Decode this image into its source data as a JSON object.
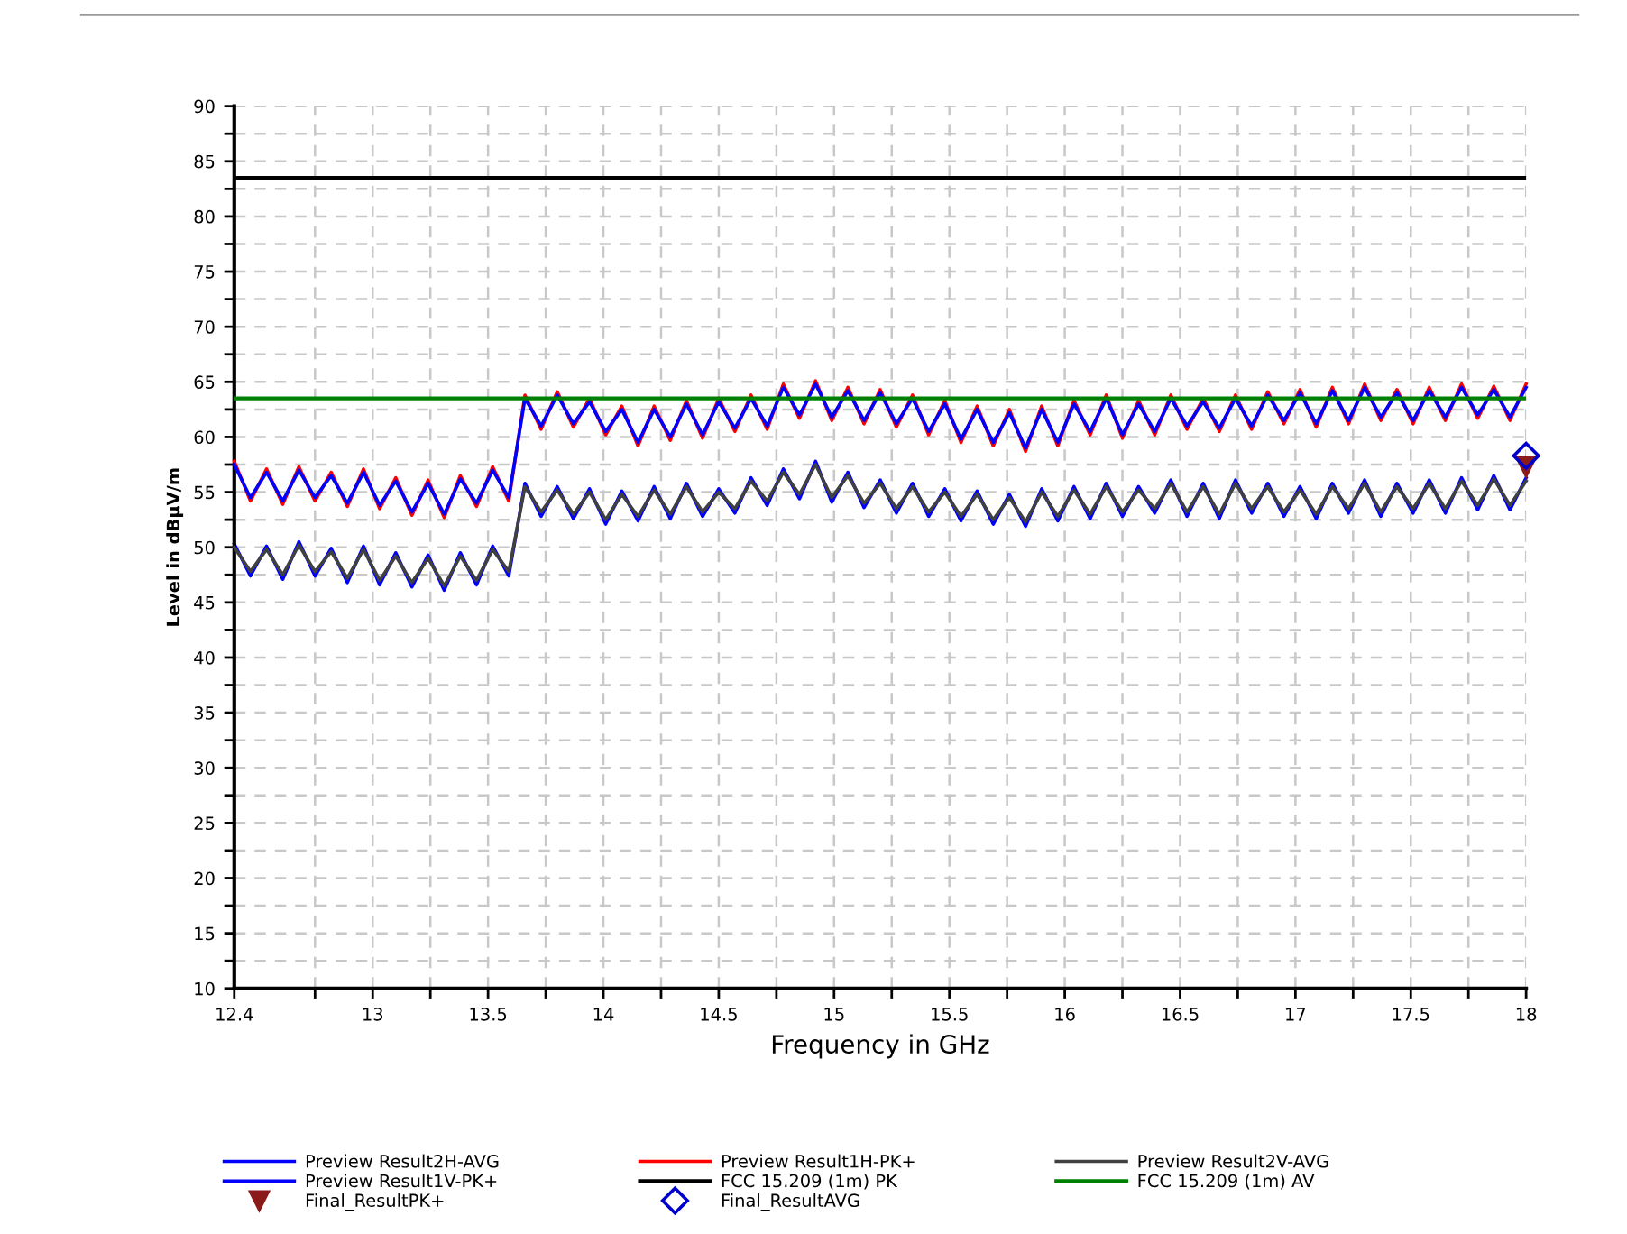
{
  "chart_data": {
    "type": "line",
    "xlabel": "Frequency in GHz",
    "ylabel": "Level in dBµV/m",
    "x": [
      12.4,
      12.47,
      12.54,
      12.61,
      12.68,
      12.75,
      12.82,
      12.89,
      12.96,
      13.03,
      13.1,
      13.17,
      13.24,
      13.31,
      13.38,
      13.45,
      13.52,
      13.59,
      13.66,
      13.73,
      13.8,
      13.87,
      13.94,
      14.01,
      14.08,
      14.15,
      14.22,
      14.29,
      14.36,
      14.43,
      14.5,
      14.57,
      14.64,
      14.71,
      14.78,
      14.85,
      14.92,
      14.99,
      15.06,
      15.13,
      15.2,
      15.27,
      15.34,
      15.41,
      15.48,
      15.55,
      15.62,
      15.69,
      15.76,
      15.83,
      15.9,
      15.97,
      16.04,
      16.11,
      16.18,
      16.25,
      16.32,
      16.39,
      16.46,
      16.53,
      16.6,
      16.67,
      16.74,
      16.81,
      16.88,
      16.95,
      17.02,
      17.09,
      17.16,
      17.23,
      17.3,
      17.37,
      17.44,
      17.51,
      17.58,
      17.65,
      17.72,
      17.79,
      17.86,
      17.93,
      18.0
    ],
    "series": [
      {
        "name": "Preview Result2H-AVG",
        "color": "#0000ff",
        "values": [
          50.3,
          47.4,
          50.1,
          47.1,
          50.5,
          47.4,
          49.9,
          46.8,
          50.1,
          46.6,
          49.5,
          46.4,
          49.3,
          46.1,
          49.5,
          46.6,
          50.1,
          47.4,
          55.8,
          52.8,
          55.5,
          52.6,
          55.3,
          52.1,
          55.1,
          52.4,
          55.5,
          52.6,
          55.8,
          52.8,
          55.3,
          53.1,
          56.3,
          53.8,
          57.1,
          54.4,
          57.8,
          54.1,
          56.8,
          53.6,
          56.1,
          53.1,
          55.8,
          52.8,
          55.3,
          52.4,
          55.1,
          52.1,
          54.8,
          51.9,
          55.3,
          52.4,
          55.5,
          52.6,
          55.8,
          52.8,
          55.5,
          53.1,
          56.1,
          52.8,
          55.8,
          52.6,
          56.1,
          53.1,
          55.8,
          52.8,
          55.5,
          52.6,
          55.8,
          53.1,
          56.1,
          52.8,
          55.8,
          53.1,
          56.1,
          53.1,
          56.3,
          53.4,
          56.5,
          53.4,
          56.3
        ]
      },
      {
        "name": "Preview Result1H-PK+",
        "color": "#ff0000",
        "values": [
          57.8,
          54.2,
          57.1,
          53.9,
          57.3,
          54.2,
          56.8,
          53.7,
          57.1,
          53.5,
          56.3,
          52.9,
          56.1,
          52.7,
          56.5,
          53.7,
          57.3,
          54.2,
          63.8,
          60.7,
          64.1,
          60.9,
          63.5,
          60.2,
          62.8,
          59.2,
          62.8,
          59.7,
          63.3,
          59.9,
          63.5,
          60.5,
          63.8,
          60.7,
          64.8,
          61.7,
          65.1,
          61.5,
          64.5,
          61.2,
          64.3,
          60.9,
          63.8,
          60.2,
          63.3,
          59.5,
          62.8,
          59.2,
          62.5,
          58.7,
          62.8,
          59.2,
          63.3,
          60.2,
          63.8,
          59.9,
          63.3,
          60.2,
          63.8,
          60.7,
          63.5,
          60.5,
          63.8,
          60.7,
          64.1,
          61.2,
          64.3,
          60.9,
          64.5,
          61.2,
          64.8,
          61.5,
          64.3,
          61.2,
          64.5,
          61.5,
          64.8,
          61.7,
          64.6,
          61.5,
          64.8
        ]
      },
      {
        "name": "Preview Result2V-AVG",
        "color": "#404040",
        "values": [
          50,
          47.8,
          49.8,
          47.5,
          50.2,
          47.8,
          49.6,
          47.2,
          49.8,
          47,
          49.2,
          46.8,
          49,
          46.5,
          49.2,
          47,
          49.8,
          47.8,
          55.5,
          53.2,
          55.2,
          53,
          55,
          52.5,
          54.8,
          52.8,
          55.2,
          53,
          55.5,
          53.2,
          55,
          53.5,
          56,
          54.2,
          56.8,
          54.8,
          57.5,
          54.5,
          56.5,
          54,
          55.8,
          53.5,
          55.5,
          53.2,
          55,
          52.8,
          54.8,
          52.5,
          54.5,
          52.3,
          55,
          52.8,
          55.2,
          53,
          55.5,
          53.2,
          55.2,
          53.5,
          55.8,
          53.2,
          55.5,
          53,
          55.8,
          53.5,
          55.5,
          53.2,
          55.2,
          53,
          55.5,
          53.5,
          55.8,
          53.2,
          55.5,
          53.5,
          55.8,
          53.5,
          56,
          53.8,
          56.2,
          53.8,
          56
        ]
      },
      {
        "name": "Preview Result1V-PK+",
        "color": "#0000ff",
        "values": [
          57.5,
          54.5,
          56.8,
          54.2,
          57,
          54.5,
          56.5,
          54,
          56.8,
          53.8,
          56,
          53.2,
          55.8,
          53,
          56.2,
          54,
          57,
          54.5,
          63.5,
          61,
          63.8,
          61.2,
          63.2,
          60.5,
          62.5,
          59.5,
          62.5,
          60,
          63,
          60.2,
          63.2,
          60.8,
          63.5,
          61,
          64.5,
          62,
          64.8,
          61.8,
          64.2,
          61.5,
          64,
          61.2,
          63.5,
          60.5,
          63,
          59.8,
          62.5,
          59.5,
          62.2,
          59,
          62.5,
          59.5,
          63,
          60.5,
          63.5,
          60.2,
          63,
          60.5,
          63.5,
          61,
          63.2,
          60.8,
          63.5,
          61,
          63.8,
          61.5,
          64,
          61.2,
          64.2,
          61.5,
          64.5,
          61.8,
          64,
          61.5,
          64.2,
          61.8,
          64.5,
          62,
          64.3,
          61.8,
          64.5
        ]
      },
      {
        "name": "Final_ResultPK+",
        "color": "#8b1a1a",
        "type": "scatter",
        "marker": "triangle",
        "x": [
          18
        ],
        "values": [
          57.3
        ]
      },
      {
        "name": "Final_ResultAVG",
        "color": "#0000cc",
        "type": "scatter",
        "marker": "diamond",
        "x": [
          18
        ],
        "values": [
          58.3
        ]
      }
    ],
    "ref_lines": [
      {
        "axis": "y",
        "value": 83.5,
        "label": "FCC 15.209 (1m) PK",
        "color": "#000000"
      },
      {
        "axis": "y",
        "value": 63.5,
        "label": "FCC 15.209 (1m) AV",
        "color": "#008000"
      }
    ],
    "xlim": [
      12.4,
      18
    ],
    "xticks": [
      12.4,
      {
        "value": 12.75,
        "label": null
      },
      13,
      {
        "value": 13.25,
        "label": null
      },
      13.5,
      {
        "value": 13.75,
        "label": null
      },
      14,
      {
        "value": 14.25,
        "label": null
      },
      14.5,
      {
        "value": 14.75,
        "label": null
      },
      15,
      {
        "value": 15.25,
        "label": null
      },
      15.5,
      {
        "value": 15.75,
        "label": null
      },
      16,
      {
        "value": 16.25,
        "label": null
      },
      16.5,
      {
        "value": 16.75,
        "label": null
      },
      17,
      {
        "value": 17.25,
        "label": null
      },
      17.5,
      {
        "value": 17.75,
        "label": null
      },
      18
    ],
    "ylim": [
      10,
      90
    ],
    "yticks": [
      10,
      {
        "value": 12.5,
        "label": null
      },
      15,
      {
        "value": 17.5,
        "label": null
      },
      20,
      {
        "value": 22.5,
        "label": null
      },
      25,
      {
        "value": 27.5,
        "label": null
      },
      30,
      {
        "value": 32.5,
        "label": null
      },
      35,
      {
        "value": 37.5,
        "label": null
      },
      40,
      {
        "value": 42.5,
        "label": null
      },
      45,
      {
        "value": 47.5,
        "label": null
      },
      50,
      {
        "value": 52.5,
        "label": null
      },
      55,
      {
        "value": 57.5,
        "label": null
      },
      60,
      {
        "value": 62.5,
        "label": null
      },
      65,
      {
        "value": 67.5,
        "label": null
      },
      70,
      {
        "value": 72.5,
        "label": null
      },
      75,
      {
        "value": 77.5,
        "label": null
      },
      80,
      {
        "value": 82.5,
        "label": null
      },
      85,
      {
        "value": 87.5,
        "label": null
      },
      90
    ],
    "grid": true,
    "legend": "bottom",
    "line_style": "solid",
    "marker": "none"
  }
}
